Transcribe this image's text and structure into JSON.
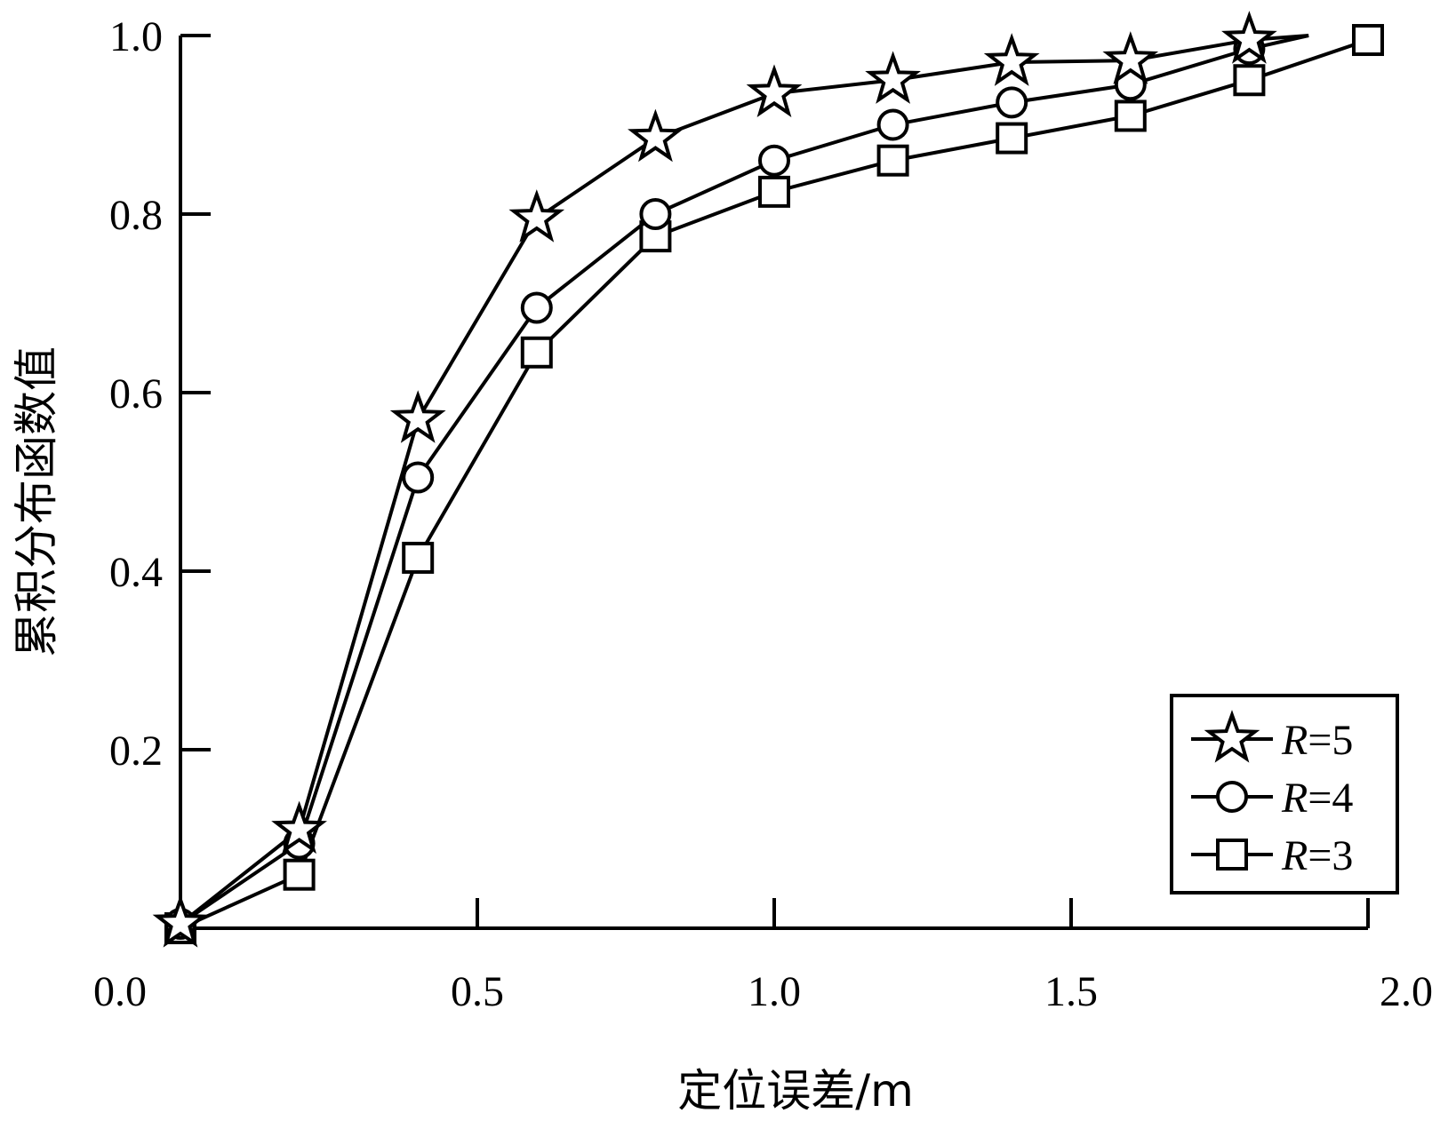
{
  "chart_data": {
    "type": "line",
    "xlabel": "定位误差/m",
    "ylabel": "累积分布函数值",
    "xlim": [
      0,
      2.0
    ],
    "ylim": [
      0,
      1.0
    ],
    "x_ticks": [
      "0.0",
      "0.5",
      "1.0",
      "1.5",
      "2.0"
    ],
    "y_ticks": [
      "0.2",
      "0.4",
      "0.6",
      "0.8",
      "1.0"
    ],
    "grid": false,
    "legend_position": "bottom-right",
    "series": [
      {
        "name": "R=5",
        "name_italic": "R",
        "name_rest": "=5",
        "marker": "star",
        "x": [
          0.0,
          0.2,
          0.4,
          0.6,
          0.8,
          1.0,
          1.2,
          1.4,
          1.6,
          1.8
        ],
        "y": [
          0.005,
          0.11,
          0.57,
          0.795,
          0.885,
          0.935,
          0.95,
          0.97,
          0.972,
          0.995
        ],
        "line_end": [
          1.9,
          1.0
        ]
      },
      {
        "name": "R=4",
        "name_italic": "R",
        "name_rest": "=4",
        "marker": "circle",
        "x": [
          0.0,
          0.2,
          0.4,
          0.6,
          0.8,
          1.0,
          1.2,
          1.4,
          1.6,
          1.8
        ],
        "y": [
          0.005,
          0.095,
          0.505,
          0.695,
          0.8,
          0.86,
          0.9,
          0.925,
          0.945,
          0.985
        ],
        "line_end": [
          1.9,
          1.0
        ]
      },
      {
        "name": "R=3",
        "name_italic": "R",
        "name_rest": "=3",
        "marker": "square",
        "x": [
          0.0,
          0.2,
          0.4,
          0.6,
          0.8,
          1.0,
          1.2,
          1.4,
          1.6,
          1.8,
          2.0
        ],
        "y": [
          0.0,
          0.06,
          0.415,
          0.645,
          0.775,
          0.825,
          0.86,
          0.885,
          0.91,
          0.95,
          0.995
        ]
      }
    ]
  }
}
